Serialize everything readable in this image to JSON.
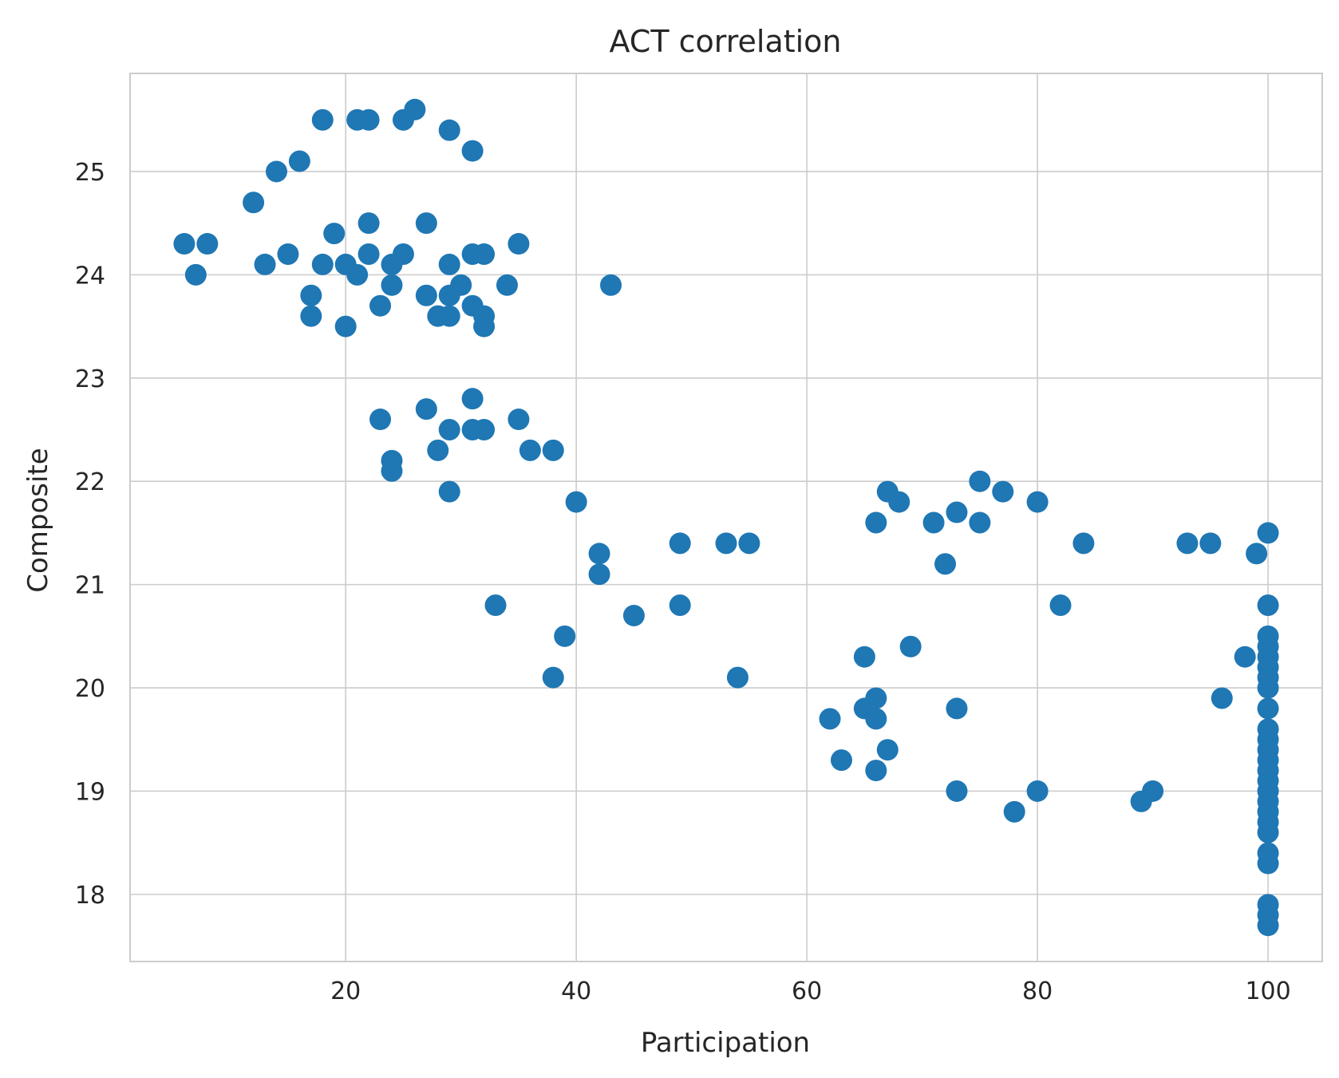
{
  "chart_data": {
    "type": "scatter",
    "title": "ACT correlation",
    "xlabel": "Participation",
    "ylabel": "Composite",
    "xlim": [
      1.3,
      104.7
    ],
    "ylim": [
      17.35,
      25.95
    ],
    "xticks": [
      20,
      40,
      60,
      80,
      100
    ],
    "yticks": [
      18,
      19,
      20,
      21,
      22,
      23,
      24,
      25
    ],
    "grid": true,
    "color": "#1f77b4",
    "points": [
      [
        18,
        25.5
      ],
      [
        21,
        25.5
      ],
      [
        22,
        25.5
      ],
      [
        25,
        25.5
      ],
      [
        26,
        25.6
      ],
      [
        29,
        25.4
      ],
      [
        31,
        25.2
      ],
      [
        16,
        25.1
      ],
      [
        14,
        25.0
      ],
      [
        12,
        24.7
      ],
      [
        19,
        24.4
      ],
      [
        22,
        24.5
      ],
      [
        27,
        24.5
      ],
      [
        6,
        24.3
      ],
      [
        8,
        24.3
      ],
      [
        35,
        24.3
      ],
      [
        15,
        24.2
      ],
      [
        22,
        24.2
      ],
      [
        25,
        24.2
      ],
      [
        31,
        24.2
      ],
      [
        32,
        24.2
      ],
      [
        13,
        24.1
      ],
      [
        18,
        24.1
      ],
      [
        20,
        24.1
      ],
      [
        24,
        24.1
      ],
      [
        29,
        24.1
      ],
      [
        7,
        24.0
      ],
      [
        21,
        24.0
      ],
      [
        24,
        23.9
      ],
      [
        30,
        23.9
      ],
      [
        34,
        23.9
      ],
      [
        43,
        23.9
      ],
      [
        17,
        23.8
      ],
      [
        27,
        23.8
      ],
      [
        29,
        23.8
      ],
      [
        23,
        23.7
      ],
      [
        31,
        23.7
      ],
      [
        17,
        23.6
      ],
      [
        28,
        23.6
      ],
      [
        29,
        23.6
      ],
      [
        32,
        23.6
      ],
      [
        20,
        23.5
      ],
      [
        32,
        23.5
      ],
      [
        31,
        22.8
      ],
      [
        27,
        22.7
      ],
      [
        23,
        22.6
      ],
      [
        35,
        22.6
      ],
      [
        29,
        22.5
      ],
      [
        31,
        22.5
      ],
      [
        32,
        22.5
      ],
      [
        28,
        22.3
      ],
      [
        36,
        22.3
      ],
      [
        38,
        22.3
      ],
      [
        24,
        22.2
      ],
      [
        24,
        22.1
      ],
      [
        29,
        21.9
      ],
      [
        40,
        21.8
      ],
      [
        42,
        21.3
      ],
      [
        42,
        21.1
      ],
      [
        49,
        21.4
      ],
      [
        53,
        21.4
      ],
      [
        55,
        21.4
      ],
      [
        33,
        20.8
      ],
      [
        49,
        20.8
      ],
      [
        45,
        20.7
      ],
      [
        39,
        20.5
      ],
      [
        38,
        20.1
      ],
      [
        54,
        20.1
      ],
      [
        75,
        22.0
      ],
      [
        67,
        21.9
      ],
      [
        77,
        21.9
      ],
      [
        68,
        21.8
      ],
      [
        80,
        21.8
      ],
      [
        73,
        21.7
      ],
      [
        66,
        21.6
      ],
      [
        71,
        21.6
      ],
      [
        75,
        21.6
      ],
      [
        84,
        21.4
      ],
      [
        72,
        21.2
      ],
      [
        82,
        20.8
      ],
      [
        69,
        20.4
      ],
      [
        65,
        20.3
      ],
      [
        66,
        19.9
      ],
      [
        65,
        19.8
      ],
      [
        73,
        19.8
      ],
      [
        62,
        19.7
      ],
      [
        66,
        19.7
      ],
      [
        67,
        19.4
      ],
      [
        63,
        19.3
      ],
      [
        66,
        19.2
      ],
      [
        73,
        19.0
      ],
      [
        80,
        19.0
      ],
      [
        78,
        18.8
      ],
      [
        93,
        21.4
      ],
      [
        95,
        21.4
      ],
      [
        99,
        21.3
      ],
      [
        100,
        21.5
      ],
      [
        100,
        20.8
      ],
      [
        98,
        20.3
      ],
      [
        96,
        19.9
      ],
      [
        90,
        19.0
      ],
      [
        89,
        18.9
      ],
      [
        100,
        20.5
      ],
      [
        100,
        20.4
      ],
      [
        100,
        20.3
      ],
      [
        100,
        20.2
      ],
      [
        100,
        20.1
      ],
      [
        100,
        20.0
      ],
      [
        100,
        19.8
      ],
      [
        100,
        19.6
      ],
      [
        100,
        19.5
      ],
      [
        100,
        19.4
      ],
      [
        100,
        19.3
      ],
      [
        100,
        19.2
      ],
      [
        100,
        19.1
      ],
      [
        100,
        19.0
      ],
      [
        100,
        18.9
      ],
      [
        100,
        18.8
      ],
      [
        100,
        18.7
      ],
      [
        100,
        18.6
      ],
      [
        100,
        18.4
      ],
      [
        100,
        18.3
      ],
      [
        100,
        17.9
      ],
      [
        100,
        17.8
      ],
      [
        100,
        17.7
      ]
    ]
  }
}
